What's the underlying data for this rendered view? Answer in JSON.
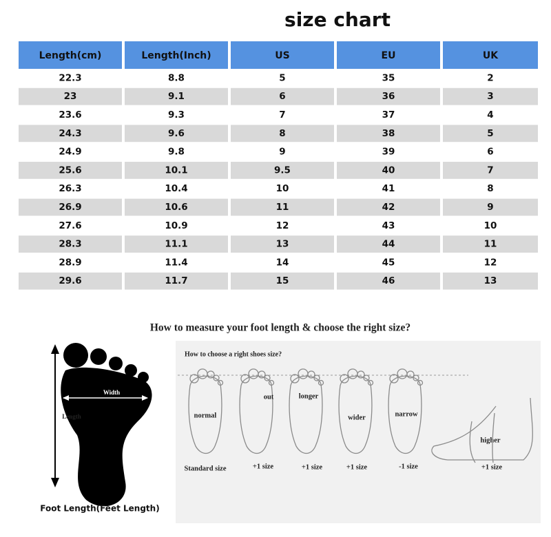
{
  "title": "size chart",
  "table": {
    "headers": [
      "Length(cm)",
      "Length(Inch)",
      "US",
      "EU",
      "UK"
    ],
    "rows": [
      [
        "22.3",
        "8.8",
        "5",
        "35",
        "2"
      ],
      [
        "23",
        "9.1",
        "6",
        "36",
        "3"
      ],
      [
        "23.6",
        "9.3",
        "7",
        "37",
        "4"
      ],
      [
        "24.3",
        "9.6",
        "8",
        "38",
        "5"
      ],
      [
        "24.9",
        "9.8",
        "9",
        "39",
        "6"
      ],
      [
        "25.6",
        "10.1",
        "9.5",
        "40",
        "7"
      ],
      [
        "26.3",
        "10.4",
        "10",
        "41",
        "8"
      ],
      [
        "26.9",
        "10.6",
        "11",
        "42",
        "9"
      ],
      [
        "27.6",
        "10.9",
        "12",
        "43",
        "10"
      ],
      [
        "28.3",
        "11.1",
        "13",
        "44",
        "11"
      ],
      [
        "28.9",
        "11.4",
        "14",
        "45",
        "12"
      ],
      [
        "29.6",
        "11.7",
        "15",
        "46",
        "13"
      ]
    ]
  },
  "measure": {
    "heading": "How to measure your foot length & choose the right size?",
    "foot": {
      "width_label": "Width",
      "length_label": "Length",
      "caption": "Foot Length(Feet Length)"
    },
    "choose": {
      "heading": "How to choose a right shoes size?",
      "fit_labels": [
        "normal",
        "out",
        "longer",
        "wider",
        "narrow",
        "higher"
      ],
      "size_labels": [
        "Standard size",
        "+1 size",
        "+1 size",
        "+1 size",
        "-1 size",
        "+1 size"
      ]
    }
  }
}
